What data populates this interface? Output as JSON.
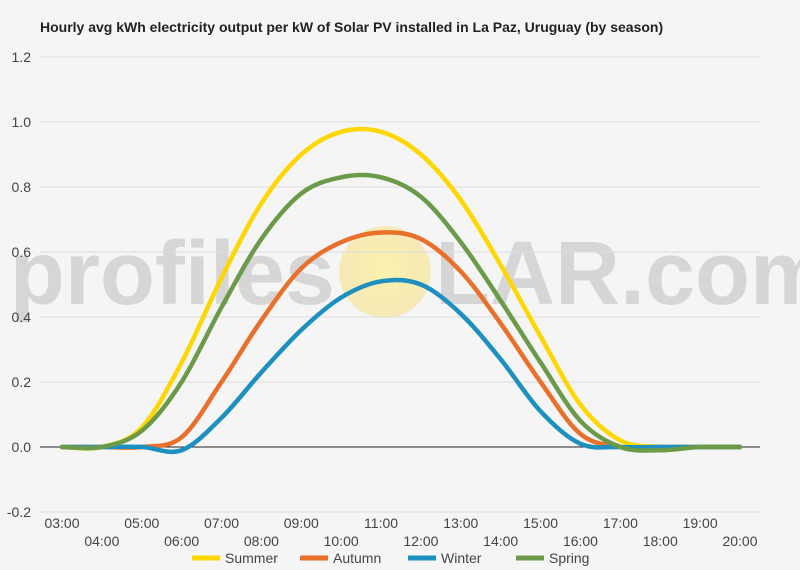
{
  "chart_data": {
    "type": "line",
    "title": "Hourly avg kWh electricity output per kW of Solar PV installed in La Paz, Uruguay (by season)",
    "x": [
      "03:00",
      "04:00",
      "05:00",
      "06:00",
      "07:00",
      "08:00",
      "09:00",
      "10:00",
      "11:00",
      "12:00",
      "13:00",
      "14:00",
      "15:00",
      "16:00",
      "17:00",
      "18:00",
      "19:00",
      "20:00"
    ],
    "ylim": [
      -0.2,
      1.2
    ],
    "yticks": [
      "-0.2",
      "0.0",
      "0.2",
      "0.4",
      "0.6",
      "0.8",
      "1.0",
      "1.2"
    ],
    "grid": true,
    "legend_position": "bottom",
    "watermark": {
      "left": "profiles",
      "right": "LAR.com"
    },
    "series": [
      {
        "name": "Summer",
        "color": "#FFD700",
        "values": [
          0.0,
          0.0,
          0.06,
          0.26,
          0.52,
          0.75,
          0.9,
          0.97,
          0.97,
          0.9,
          0.76,
          0.56,
          0.34,
          0.13,
          0.02,
          0.0,
          0.0,
          0.0
        ]
      },
      {
        "name": "Autumn",
        "color": "#E8702A",
        "values": [
          0.0,
          0.0,
          0.0,
          0.03,
          0.2,
          0.39,
          0.55,
          0.63,
          0.66,
          0.64,
          0.54,
          0.38,
          0.2,
          0.04,
          0.0,
          0.0,
          0.0,
          0.0
        ]
      },
      {
        "name": "Winter",
        "color": "#1E90C0",
        "values": [
          0.0,
          0.0,
          0.0,
          -0.01,
          0.09,
          0.23,
          0.36,
          0.46,
          0.51,
          0.5,
          0.41,
          0.27,
          0.11,
          0.01,
          0.0,
          0.0,
          0.0,
          0.0
        ]
      },
      {
        "name": "Spring",
        "color": "#6B9A4A",
        "values": [
          0.0,
          0.0,
          0.05,
          0.2,
          0.43,
          0.64,
          0.78,
          0.83,
          0.83,
          0.77,
          0.63,
          0.45,
          0.26,
          0.08,
          0.0,
          -0.01,
          0.0,
          0.0
        ]
      }
    ]
  }
}
